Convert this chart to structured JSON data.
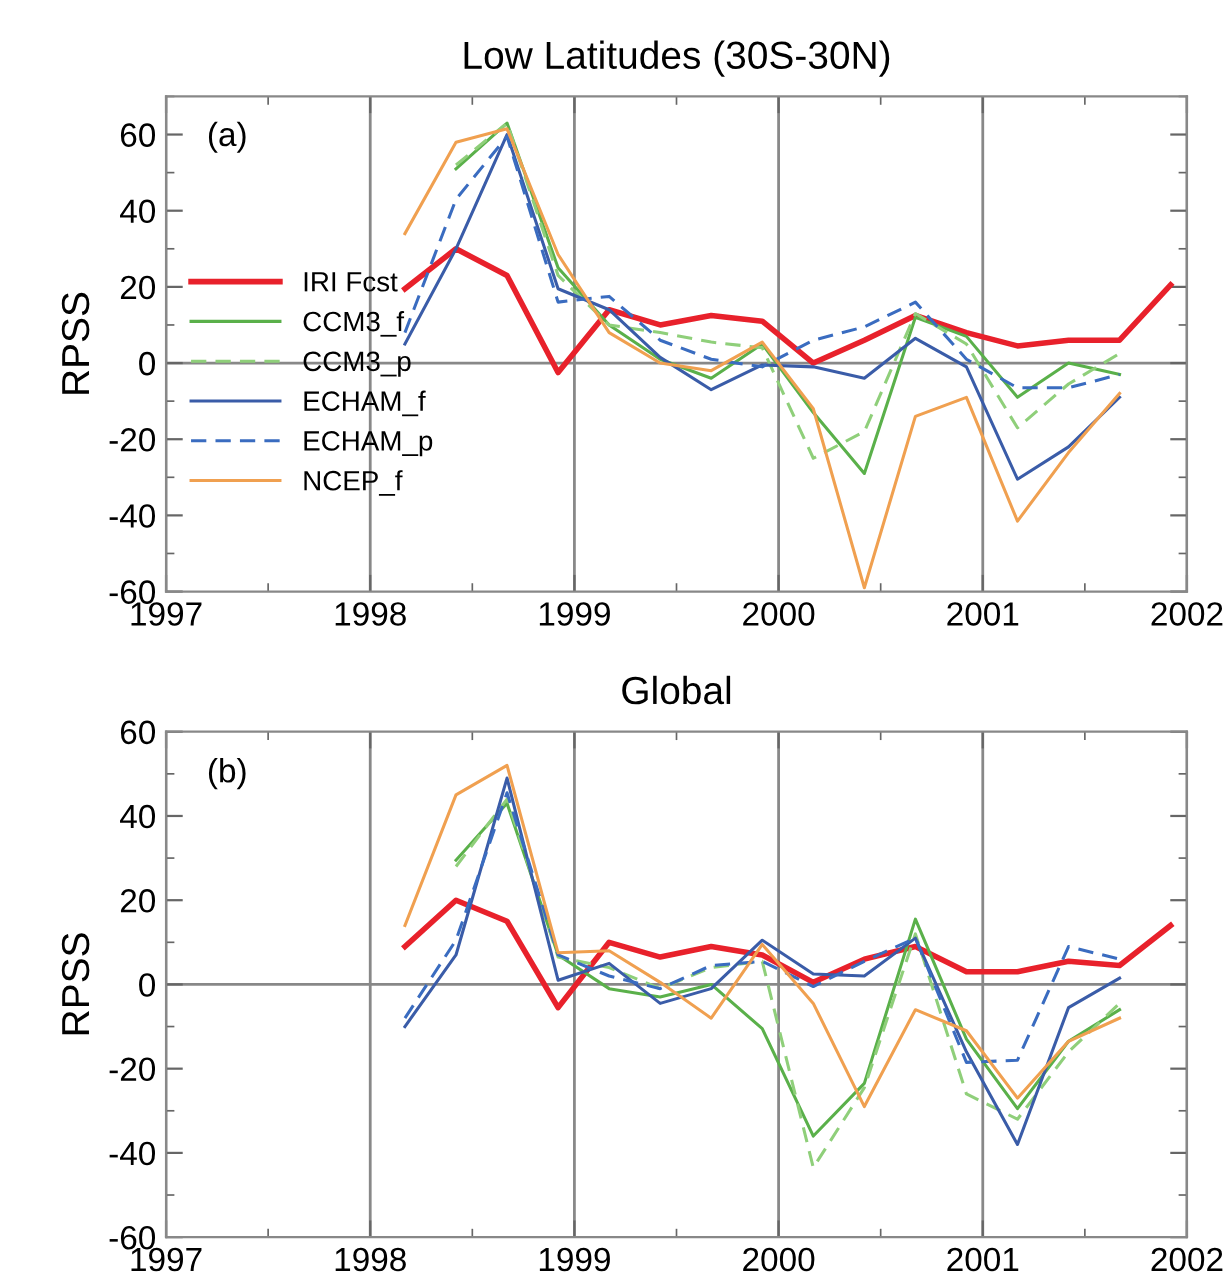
{
  "chart_data": [
    {
      "type": "line",
      "title": "Low Latitudes (30S-30N)",
      "ylabel": "RPSS",
      "annotations": [
        "(a)"
      ],
      "x": [
        1998.17,
        1998.42,
        1998.67,
        1998.92,
        1999.17,
        1999.42,
        1999.67,
        1999.92,
        2000.17,
        2000.42,
        2000.67,
        2000.92,
        2001.17,
        2001.42,
        2001.67,
        2001.92
      ],
      "series": [
        {
          "name": "IRI Fcst",
          "color": "#e8212b",
          "line_style": "solid",
          "values": [
            19.5,
            30,
            23,
            -2.5,
            14,
            10,
            12.5,
            11,
            0,
            6,
            12.5,
            8,
            4.5,
            6,
            6,
            20.5
          ]
        },
        {
          "name": "CCM3_f",
          "color": "#5ab04a",
          "line_style": "solid",
          "values": [
            null,
            51,
            63,
            25,
            10,
            1,
            -4,
            5,
            -13,
            -29,
            12,
            7,
            -9,
            0,
            -3,
            null
          ]
        },
        {
          "name": "CCM3_p",
          "color": "#8fcf7a",
          "line_style": "dashed",
          "values": [
            null,
            52,
            63,
            23,
            10,
            8,
            5.5,
            4,
            -25,
            -18,
            13,
            5,
            -17,
            -5.5,
            2.5,
            null
          ]
        },
        {
          "name": "ECHAM_f",
          "color": "#3a5ca8",
          "line_style": "solid",
          "values": [
            5,
            30,
            60,
            19.5,
            14,
            1.5,
            -7,
            -0.5,
            -1,
            -4,
            6.5,
            -1,
            -30.5,
            -22,
            -9,
            null
          ]
        },
        {
          "name": "ECHAM_p",
          "color": "#3a6cc0",
          "line_style": "dashed",
          "values": [
            8,
            43,
            59.5,
            16,
            17.5,
            6,
            1,
            -1,
            6,
            9.5,
            16,
            1,
            -6.5,
            -6.5,
            -3,
            null
          ]
        },
        {
          "name": "NCEP_f",
          "color": "#f0a050",
          "line_style": "solid",
          "values": [
            34,
            58,
            61.5,
            28.5,
            8,
            0,
            -2,
            5.5,
            -12,
            -59,
            -14,
            -9,
            -41.5,
            -23.5,
            -8,
            null
          ]
        }
      ],
      "xlim": [
        1997,
        2002
      ],
      "ylim": [
        -60,
        70
      ],
      "xticks": [
        1997,
        1998,
        1999,
        2000,
        2001,
        2002
      ],
      "yticks": [
        -60,
        -40,
        -20,
        0,
        20,
        40,
        60
      ],
      "grid": "x",
      "ref_lines": [
        {
          "axis": "y",
          "value": 0,
          "color": "#888888"
        }
      ],
      "legend": "center left"
    },
    {
      "type": "line",
      "title": "Global",
      "ylabel": "RPSS",
      "annotations": [
        "(b)"
      ],
      "x": [
        1998.17,
        1998.42,
        1998.67,
        1998.92,
        1999.17,
        1999.42,
        1999.67,
        1999.92,
        2000.17,
        2000.42,
        2000.67,
        2000.92,
        2001.17,
        2001.42,
        2001.67,
        2001.92
      ],
      "series": [
        {
          "color": "#e8212b",
          "line_style": "solid",
          "values": [
            9,
            20,
            15,
            -5.5,
            10,
            6.5,
            9,
            7,
            0.5,
            6,
            9,
            3,
            3,
            5.5,
            4.5,
            14
          ]
        },
        {
          "color": "#5ab04a",
          "line_style": "solid",
          "values": [
            null,
            29.5,
            43,
            7,
            -1,
            -3,
            0,
            -10.5,
            -36,
            -23.5,
            15.5,
            -13,
            -29.5,
            -13.5,
            -6,
            null
          ]
        },
        {
          "color": "#8fcf7a",
          "line_style": "dashed",
          "values": [
            null,
            28,
            44,
            6.5,
            4,
            -1,
            4,
            5.5,
            -43.5,
            -24.5,
            12,
            -26,
            -32,
            -16,
            -4.5,
            null
          ]
        },
        {
          "color": "#3a5ca8",
          "line_style": "solid",
          "values": [
            -10,
            7,
            49,
            1,
            5,
            -4.5,
            -1,
            10.5,
            2.5,
            2,
            11,
            -16,
            -38,
            -5.5,
            1.5,
            null
          ]
        },
        {
          "color": "#3a6cc0",
          "line_style": "dashed",
          "values": [
            -8,
            10.5,
            45.5,
            7,
            2,
            -1,
            4.5,
            5.5,
            -0.5,
            5.5,
            11,
            -18.5,
            -18,
            9,
            6,
            null
          ]
        },
        {
          "color": "#f0a050",
          "line_style": "solid",
          "values": [
            14,
            45,
            52,
            7.5,
            8,
            0.5,
            -8,
            9.5,
            -4.5,
            -29,
            -6,
            -11,
            -27,
            -13.5,
            -8,
            null
          ]
        }
      ],
      "xlim": [
        1997,
        2002
      ],
      "ylim": [
        -60,
        60
      ],
      "xticks": [
        1997,
        1998,
        1999,
        2000,
        2001,
        2002
      ],
      "yticks": [
        -60,
        -40,
        -20,
        0,
        20,
        40,
        60
      ],
      "grid": "x",
      "ref_lines": [
        {
          "axis": "y",
          "value": 0,
          "color": "#888888"
        }
      ],
      "legend": false
    }
  ]
}
